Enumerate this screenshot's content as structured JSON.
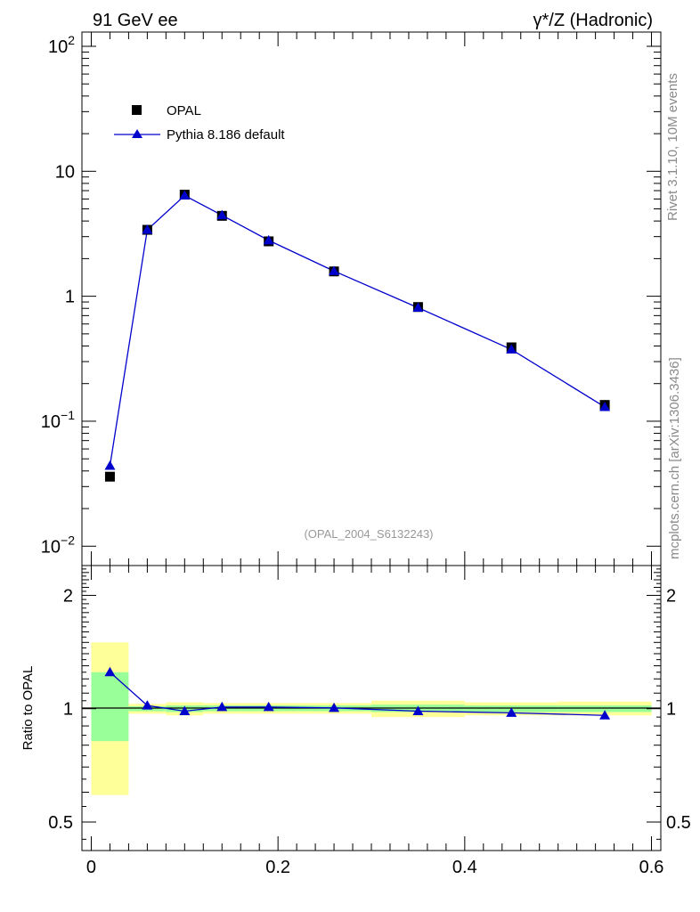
{
  "header": {
    "left": "91 GeV ee",
    "right": "γ*/Z (Hadronic)"
  },
  "side_text": {
    "top": "Rivet 3.1.10,  10M events",
    "bottom": "mcplots.cern.ch [arXiv:1306.3436]"
  },
  "analysis_tag": "(OPAL_2004_S6132243)",
  "colors": {
    "data": "#000000",
    "mc": "#0000cc",
    "band_inner": "#99ff99",
    "band_outer": "#ffff99"
  },
  "chart_data": [
    {
      "type": "scatter",
      "scale": "log",
      "ylim": [
        0.007,
        130
      ],
      "xlim": [
        -0.01,
        0.61
      ],
      "yticks": [
        "10^-2",
        "10^-1",
        "1",
        "10",
        "10^2"
      ],
      "legend": {
        "placement": "top-left",
        "entries": [
          "OPAL",
          "Pythia 8.186 default"
        ]
      },
      "series": [
        {
          "name": "OPAL",
          "marker": "square",
          "x": [
            0.02,
            0.06,
            0.1,
            0.14,
            0.19,
            0.26,
            0.35,
            0.45,
            0.55
          ],
          "y": [
            0.036,
            3.4,
            6.5,
            4.4,
            2.75,
            1.58,
            0.82,
            0.39,
            0.135
          ]
        },
        {
          "name": "Pythia 8.186 default",
          "marker": "triangle",
          "x": [
            0.02,
            0.06,
            0.1,
            0.14,
            0.19,
            0.26,
            0.35,
            0.45,
            0.55
          ],
          "y": [
            0.044,
            3.4,
            6.4,
            4.45,
            2.8,
            1.59,
            0.81,
            0.375,
            0.13
          ]
        }
      ]
    },
    {
      "type": "line",
      "ylabel": "Ratio to OPAL",
      "scale": "log",
      "ylim": [
        0.42,
        2.4
      ],
      "xlim": [
        -0.01,
        0.61
      ],
      "xticks": [
        "0",
        "0.2",
        "0.4",
        "0.6"
      ],
      "yticks": [
        "0.5",
        "1",
        "2"
      ],
      "bands": [
        {
          "x0": 0.0,
          "x1": 0.04,
          "inner": [
            0.82,
            1.25
          ],
          "outer": [
            0.59,
            1.5
          ]
        },
        {
          "x0": 0.04,
          "x1": 0.08,
          "inner": [
            0.985,
            1.015
          ],
          "outer": [
            0.97,
            1.03
          ]
        },
        {
          "x0": 0.08,
          "x1": 0.12,
          "inner": [
            0.98,
            1.02
          ],
          "outer": [
            0.96,
            1.04
          ]
        },
        {
          "x0": 0.12,
          "x1": 0.16,
          "inner": [
            0.985,
            1.02
          ],
          "outer": [
            0.97,
            1.035
          ]
        },
        {
          "x0": 0.16,
          "x1": 0.22,
          "inner": [
            0.985,
            1.02
          ],
          "outer": [
            0.97,
            1.035
          ]
        },
        {
          "x0": 0.22,
          "x1": 0.3,
          "inner": [
            0.985,
            1.02
          ],
          "outer": [
            0.97,
            1.035
          ]
        },
        {
          "x0": 0.3,
          "x1": 0.4,
          "inner": [
            0.98,
            1.025
          ],
          "outer": [
            0.95,
            1.05
          ]
        },
        {
          "x0": 0.4,
          "x1": 0.5,
          "inner": [
            0.98,
            1.02
          ],
          "outer": [
            0.96,
            1.04
          ]
        },
        {
          "x0": 0.5,
          "x1": 0.6,
          "inner": [
            0.98,
            1.02
          ],
          "outer": [
            0.96,
            1.045
          ]
        }
      ],
      "series": [
        {
          "name": "Pythia 8.186 default",
          "x": [
            0.02,
            0.06,
            0.1,
            0.14,
            0.19,
            0.26,
            0.35,
            0.45,
            0.55
          ],
          "y": [
            1.25,
            1.02,
            0.985,
            1.01,
            1.01,
            1.005,
            0.985,
            0.975,
            0.96
          ]
        }
      ]
    }
  ]
}
